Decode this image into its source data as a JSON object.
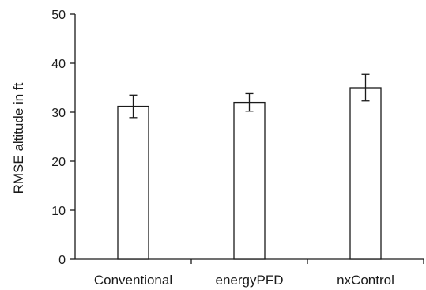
{
  "chart_data": {
    "type": "bar",
    "title": "",
    "xlabel": "",
    "ylabel": "RMSE altitude in ft",
    "categories": [
      "Conventional",
      "energyPFD",
      "nxControl"
    ],
    "values": [
      31.2,
      32.0,
      35.0
    ],
    "error": [
      2.3,
      1.8,
      2.7
    ],
    "ylim": [
      0,
      50
    ],
    "yticks": [
      0,
      10,
      20,
      30,
      40,
      50
    ],
    "grid": false,
    "legend": "none",
    "bar_fill": "#ffffff",
    "bar_stroke": "#1a1a1a"
  }
}
